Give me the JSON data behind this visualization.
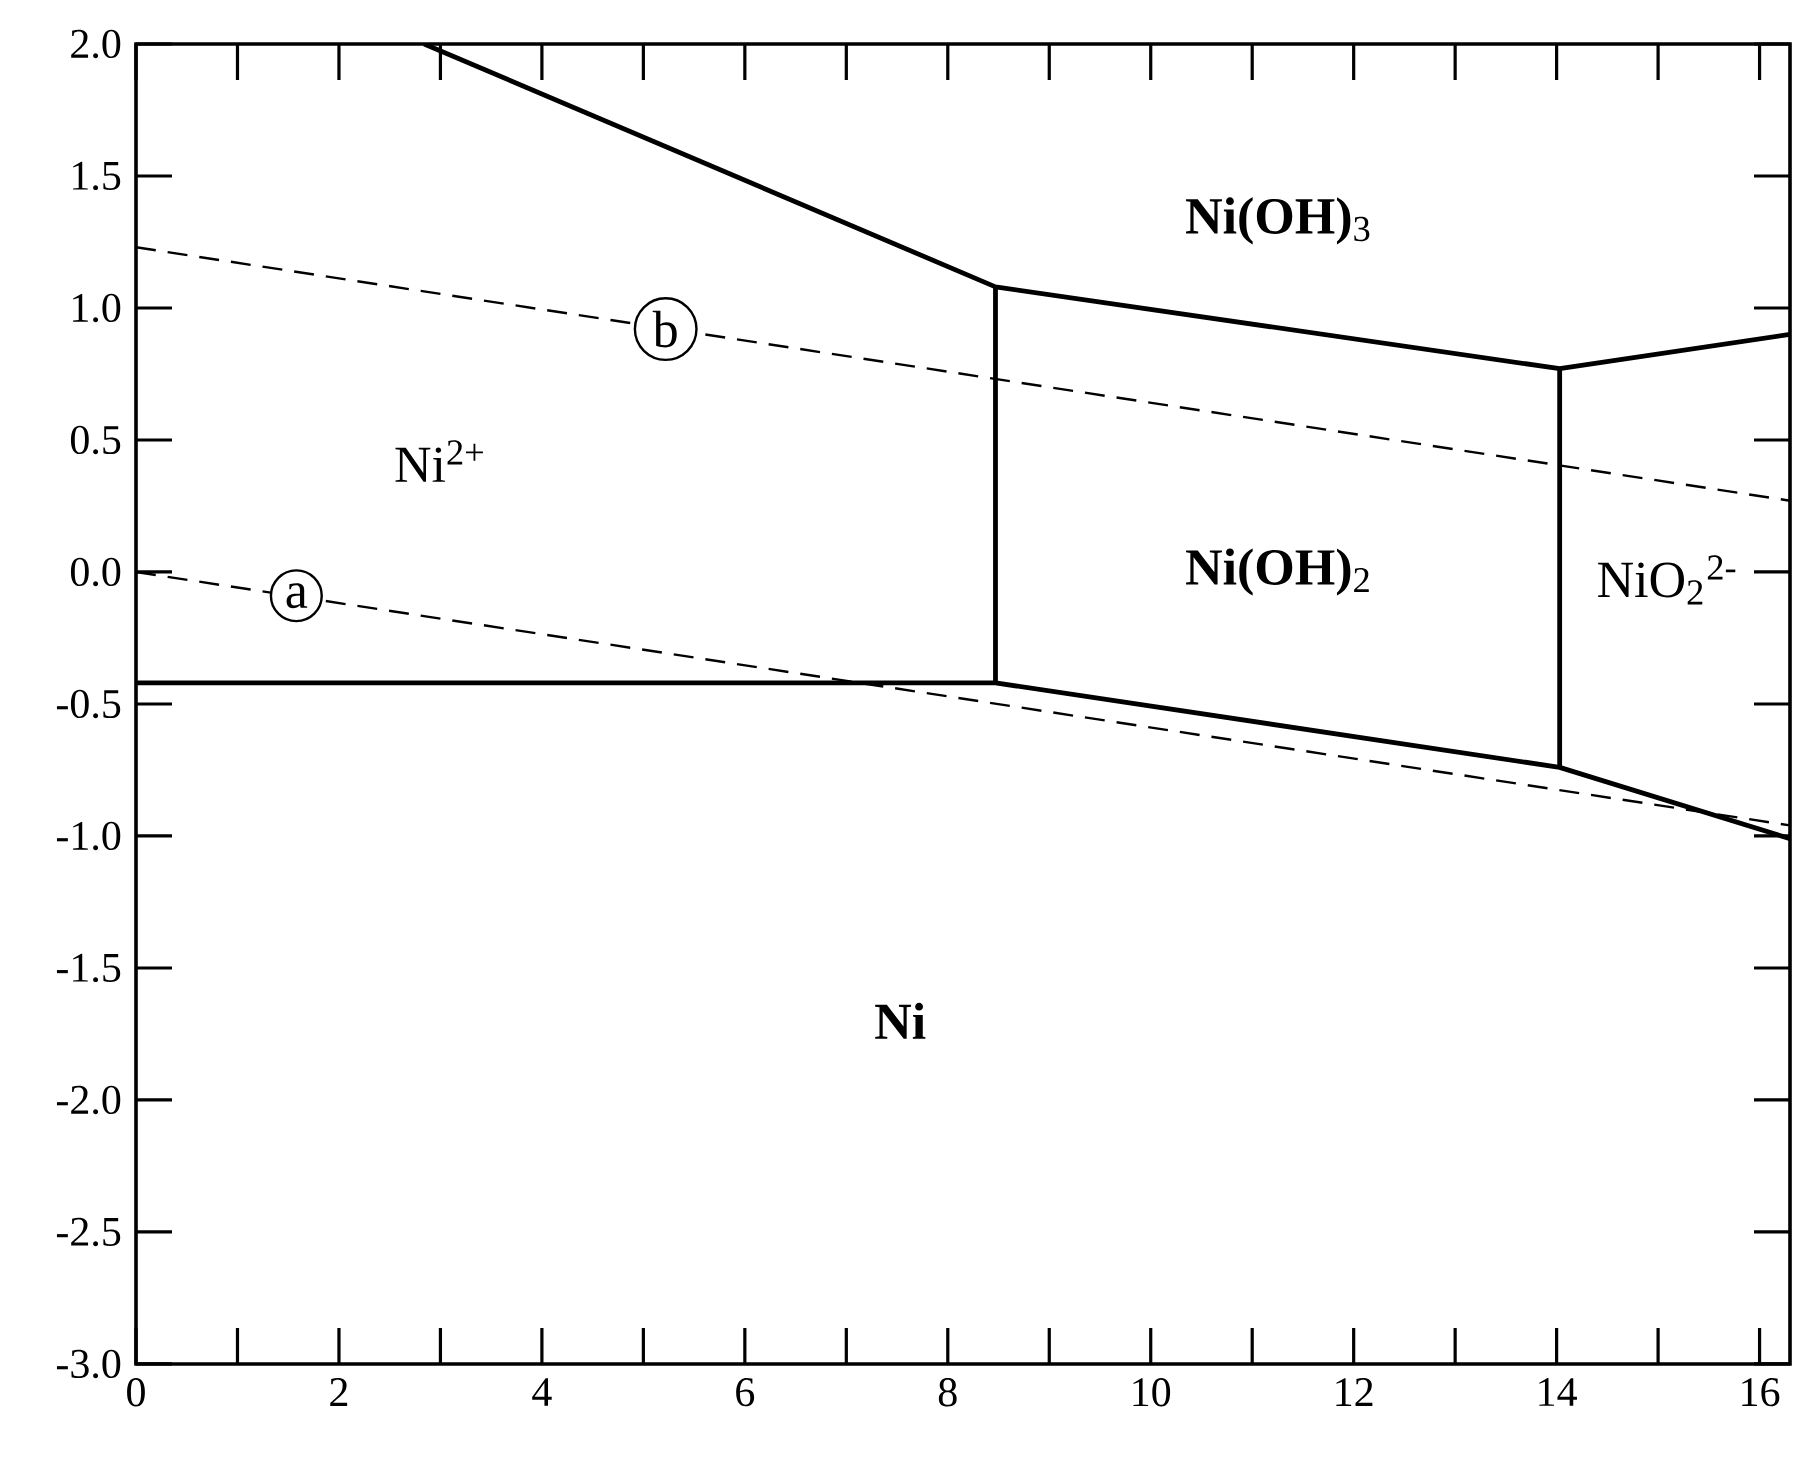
{
  "chart_data": {
    "type": "line",
    "xlim": [
      0,
      16.3
    ],
    "ylim": [
      -3.0,
      2.0
    ],
    "xticks": [
      0,
      2,
      4,
      6,
      8,
      10,
      12,
      14,
      16
    ],
    "yticks": [
      {
        "value": -3,
        "label": "-3.0"
      },
      -2.5,
      {
        "value": -2,
        "label": "-2.0"
      },
      -1.5,
      {
        "value": -1,
        "label": "-1.0"
      },
      -0.5,
      {
        "value": 0,
        "label": "0.0"
      },
      0.5,
      {
        "value": 1,
        "label": "1.0"
      },
      1.5,
      {
        "value": 2,
        "label": "2.0"
      }
    ],
    "grid": false,
    "marker": "none",
    "series": [
      {
        "color": "#000000",
        "line_style": "solid",
        "x": [
          0,
          8.47,
          14.03,
          16.3
        ],
        "values": [
          -0.42,
          -0.42,
          -0.74,
          -1.01
        ]
      },
      {
        "color": "#000000",
        "line_style": "solid",
        "x": [
          8.47,
          8.47
        ],
        "values": [
          -0.42,
          1.08
        ]
      },
      {
        "color": "#000000",
        "line_style": "solid",
        "x": [
          2.84,
          8.47,
          14.03,
          16.3
        ],
        "values": [
          2.0,
          1.08,
          0.77,
          0.9
        ]
      },
      {
        "color": "#000000",
        "line_style": "solid",
        "x": [
          14.03,
          14.03
        ],
        "values": [
          -0.74,
          0.77
        ]
      },
      {
        "color": "#000000",
        "line_style": "dashed",
        "x": [
          0,
          16.3
        ],
        "values": [
          0.0,
          -0.96
        ]
      },
      {
        "color": "#000000",
        "line_style": "dashed",
        "x": [
          0,
          16.3
        ],
        "values": [
          1.23,
          0.27
        ]
      }
    ],
    "annotations": [
      "Ni$^{2+}$",
      "**Ni(OH)**$_{3}$",
      "**Ni(OH)**$_{2}$",
      "NiO$_{2}$$^{2-}$",
      "**Ni**",
      {
        "text": "a",
        "x": 1.58,
        "y": -0.09
      },
      {
        "text": "b",
        "x": 5.22,
        "y": 0.92
      }
    ]
  }
}
